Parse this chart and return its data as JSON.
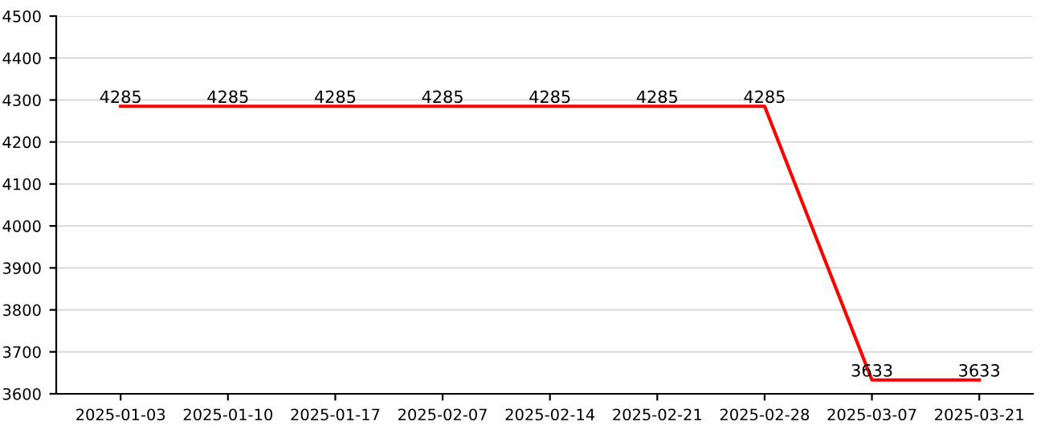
{
  "chart_data": {
    "type": "line",
    "categories": [
      "2025-01-03",
      "2025-01-10",
      "2025-01-17",
      "2025-02-07",
      "2025-02-14",
      "2025-02-21",
      "2025-02-28",
      "2025-03-07",
      "2025-03-21"
    ],
    "series": [
      {
        "color": "#ff0000",
        "values": [
          4285,
          4285,
          4285,
          4285,
          4285,
          4285,
          4285,
          3633,
          3633
        ]
      }
    ],
    "ylim": [
      3600,
      4500
    ],
    "yticks": [
      3600,
      3700,
      3800,
      3900,
      4000,
      4100,
      4200,
      4300,
      4400,
      4500
    ],
    "grid": "y",
    "data_labels": true,
    "legend": false,
    "marker": "none",
    "line_style": "solid"
  }
}
